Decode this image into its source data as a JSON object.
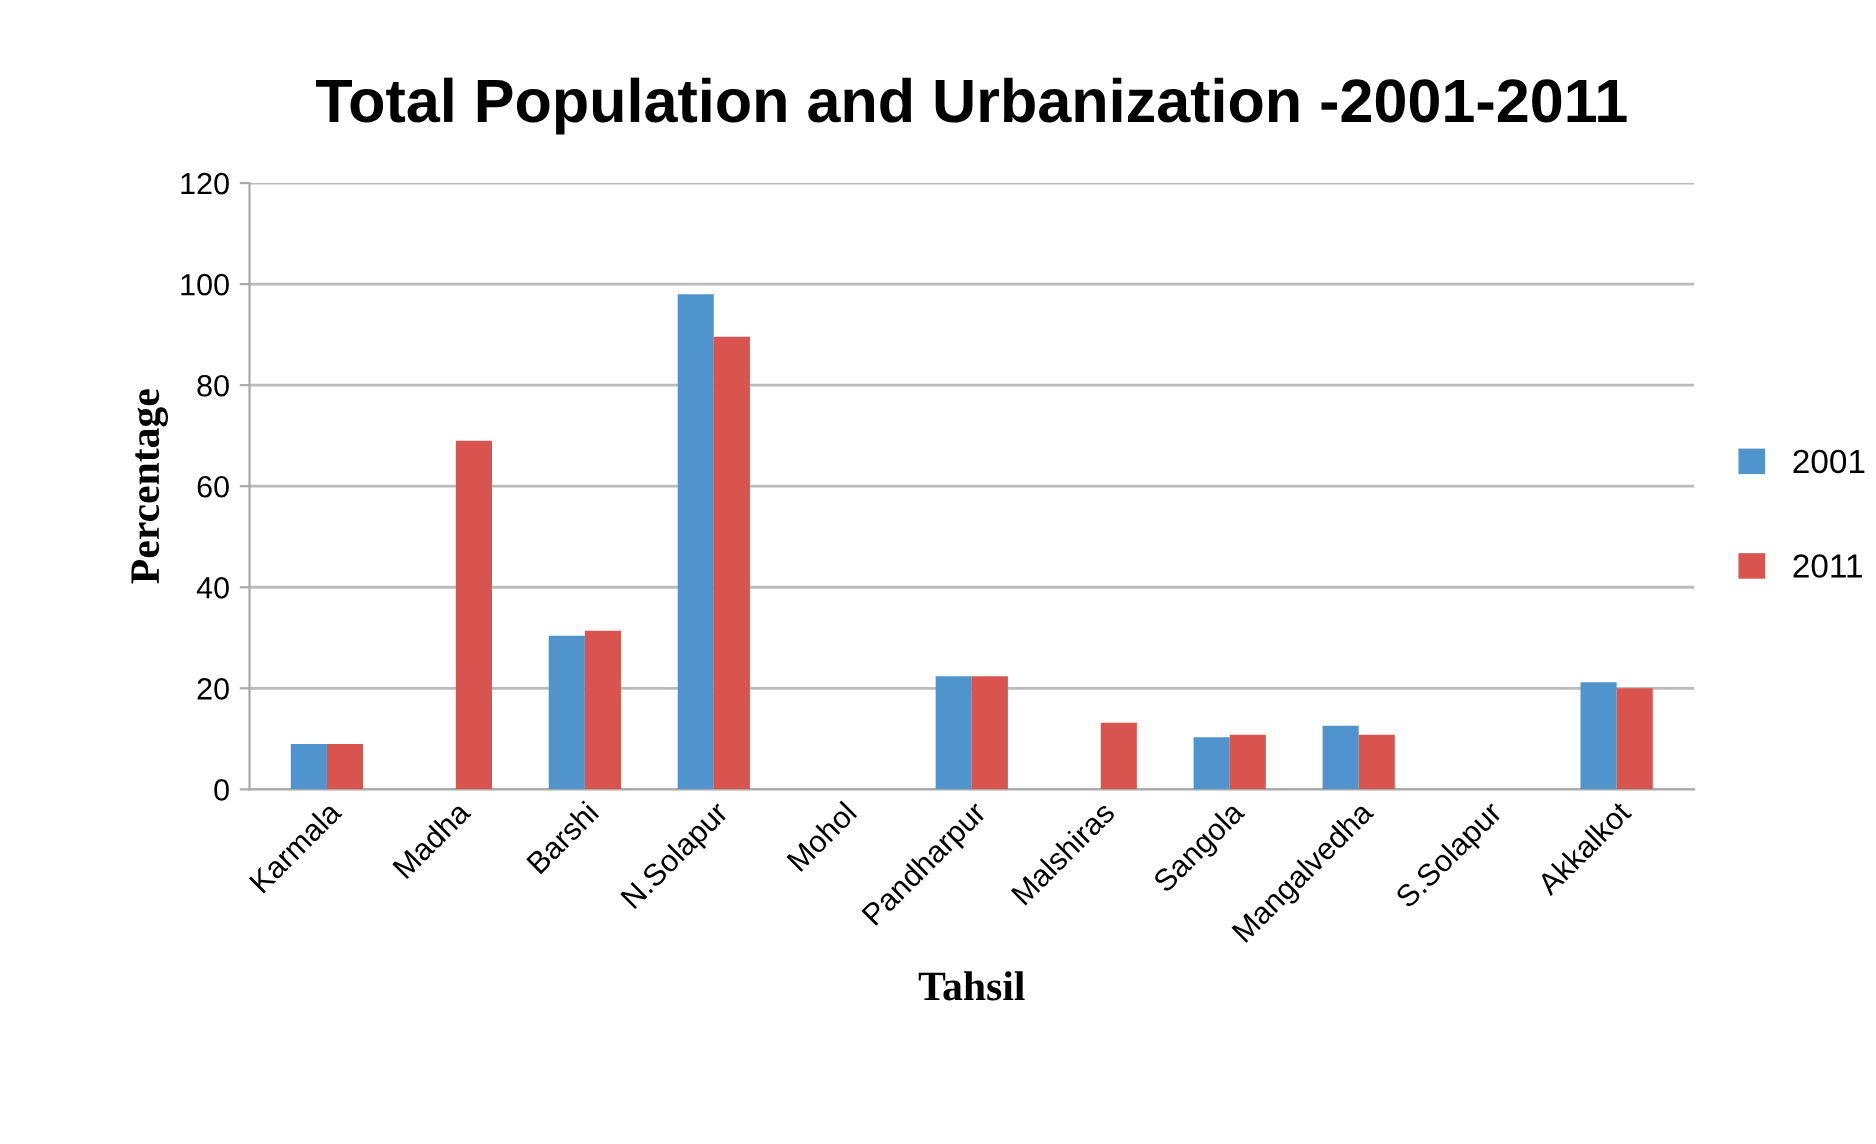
{
  "chart_data": {
    "type": "bar",
    "title": "Total Population and Urbanization -2001-2011",
    "xlabel": "Tahsil",
    "ylabel": "Percentage",
    "categories": [
      "Karmala",
      "Madha",
      "Barshi",
      "N.Solapur",
      "Mohol",
      "Pandharpur",
      "Malshiras",
      "Sangola",
      "Mangalvedha",
      "S.Solapur",
      "Akkalkot"
    ],
    "series": [
      {
        "name": "2001",
        "color": "#4f94cd",
        "values": [
          9,
          null,
          30.4,
          98,
          null,
          22.4,
          null,
          10.3,
          12.6,
          null,
          21.2
        ]
      },
      {
        "name": "2011",
        "color": "#d9534f",
        "values": [
          9,
          69,
          31.4,
          89.6,
          null,
          22.4,
          13.2,
          10.8,
          10.8,
          null,
          20
        ]
      }
    ],
    "ylim": [
      0,
      120
    ],
    "yticks": [
      0,
      20,
      40,
      60,
      80,
      100,
      120
    ],
    "grid": "y",
    "legend": "right"
  }
}
